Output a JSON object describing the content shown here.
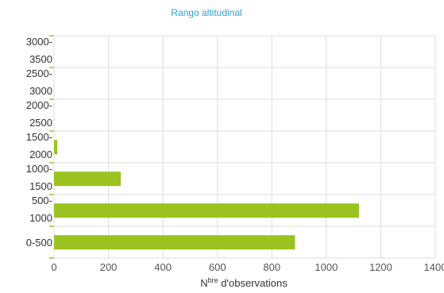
{
  "chart_data": {
    "type": "bar",
    "orientation": "horizontal",
    "title": "Rango altitudinal",
    "categories": [
      "0-500",
      "500-1000",
      "1000-1500",
      "1500-2000",
      "2000-2500",
      "2500-3000",
      "3000-3500"
    ],
    "category_label_lines": [
      [
        "0-500"
      ],
      [
        "500-",
        "1000"
      ],
      [
        "1000-",
        "1500"
      ],
      [
        "1500-",
        "2000"
      ],
      [
        "2000-",
        "2500"
      ],
      [
        "2500-",
        "3000"
      ],
      [
        "3000-",
        "3500"
      ]
    ],
    "values": [
      885,
      1120,
      245,
      12,
      0,
      0,
      0
    ],
    "xlabel": {
      "prefix": "N",
      "superscript": "bre",
      "suffix": " d'observations"
    },
    "xlim": [
      0,
      1400
    ],
    "xticks": [
      0,
      200,
      400,
      600,
      800,
      1000,
      1200,
      1400
    ],
    "grid": true,
    "legend": "none",
    "bar_color": "#9bc31f",
    "grid_color": "#dddddd",
    "title_color": "#2a9fd6"
  }
}
